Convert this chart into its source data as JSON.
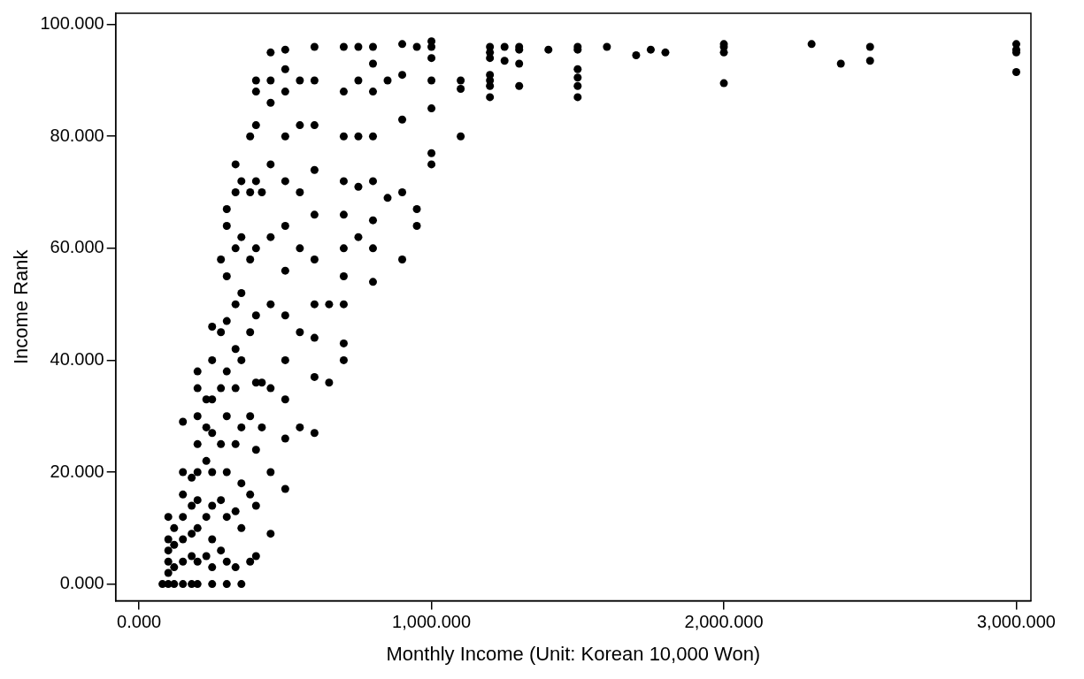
{
  "chart_data": {
    "type": "scatter",
    "xlabel": "Monthly Income (Unit: Korean 10,000 Won)",
    "ylabel": "Income Rank",
    "xlim": [
      -80,
      3050
    ],
    "ylim": [
      -3,
      102
    ],
    "xticks": [
      {
        "value": 0,
        "label": "0.000"
      },
      {
        "value": 1000,
        "label": "1,000.000"
      },
      {
        "value": 2000,
        "label": "2,000.000"
      },
      {
        "value": 3000,
        "label": "3,000.000"
      }
    ],
    "yticks": [
      {
        "value": 0,
        "label": "0.000"
      },
      {
        "value": 20,
        "label": "20.000"
      },
      {
        "value": 40,
        "label": "40.000"
      },
      {
        "value": 60,
        "label": "60.000"
      },
      {
        "value": 80,
        "label": "80.000"
      },
      {
        "value": 100,
        "label": "100.000"
      }
    ],
    "grid": false,
    "legend": false,
    "marker": "circle",
    "series": [
      {
        "color": "#000000",
        "x": [
          80,
          100,
          120,
          150,
          180,
          200,
          250,
          300,
          350,
          100,
          100,
          100,
          100,
          100,
          120,
          120,
          120,
          150,
          150,
          150,
          150,
          150,
          150,
          180,
          180,
          180,
          180,
          200,
          200,
          200,
          200,
          200,
          200,
          200,
          200,
          230,
          230,
          230,
          230,
          230,
          250,
          250,
          250,
          250,
          250,
          250,
          250,
          250,
          280,
          280,
          280,
          280,
          280,
          280,
          300,
          300,
          300,
          300,
          300,
          300,
          300,
          300,
          300,
          330,
          330,
          330,
          330,
          330,
          330,
          330,
          330,
          330,
          350,
          350,
          350,
          350,
          350,
          350,
          350,
          380,
          380,
          380,
          380,
          380,
          380,
          380,
          400,
          400,
          400,
          400,
          400,
          400,
          400,
          400,
          400,
          400,
          420,
          420,
          420,
          450,
          450,
          450,
          450,
          450,
          450,
          450,
          450,
          450,
          500,
          500,
          500,
          500,
          500,
          500,
          500,
          500,
          500,
          500,
          500,
          500,
          550,
          550,
          550,
          550,
          550,
          550,
          600,
          600,
          600,
          600,
          600,
          600,
          600,
          600,
          600,
          600,
          650,
          650,
          700,
          700,
          700,
          700,
          700,
          700,
          700,
          700,
          700,
          700,
          750,
          750,
          750,
          750,
          750,
          800,
          800,
          800,
          800,
          800,
          800,
          800,
          800,
          850,
          850,
          900,
          900,
          900,
          900,
          900,
          950,
          950,
          950,
          1000,
          1000,
          1000,
          1000,
          1000,
          1000,
          1000,
          1100,
          1100,
          1100,
          1200,
          1200,
          1200,
          1200,
          1200,
          1200,
          1200,
          1250,
          1250,
          1300,
          1300,
          1300,
          1300,
          1400,
          1500,
          1500,
          1500,
          1500,
          1500,
          1500,
          1600,
          1700,
          1750,
          1800,
          2000,
          2000,
          2000,
          2000,
          2300,
          2400,
          2500,
          2500,
          3000,
          3000,
          3000,
          3000
        ],
        "values": [
          0,
          0,
          0,
          0,
          0,
          0,
          0,
          0,
          0,
          2,
          4,
          6,
          8,
          12,
          3,
          7,
          10,
          4,
          8,
          12,
          16,
          20,
          29,
          5,
          9,
          14,
          19,
          4,
          10,
          15,
          20,
          25,
          30,
          35,
          38,
          5,
          12,
          22,
          28,
          33,
          3,
          8,
          14,
          20,
          27,
          33,
          40,
          46,
          6,
          15,
          25,
          35,
          45,
          58,
          4,
          12,
          20,
          30,
          38,
          47,
          55,
          64,
          67,
          3,
          13,
          25,
          35,
          42,
          50,
          60,
          70,
          75,
          10,
          18,
          28,
          40,
          52,
          62,
          72,
          4,
          16,
          30,
          45,
          58,
          70,
          80,
          5,
          14,
          24,
          36,
          48,
          60,
          72,
          82,
          88,
          90,
          28,
          36,
          70,
          9,
          20,
          35,
          50,
          62,
          75,
          86,
          90,
          95,
          17,
          26,
          33,
          40,
          48,
          56,
          64,
          72,
          80,
          88,
          92,
          95.5,
          28,
          45,
          60,
          70,
          82,
          90,
          27,
          37,
          44,
          50,
          58,
          66,
          74,
          82,
          90,
          96,
          36,
          50,
          40,
          43,
          50,
          55,
          60,
          66,
          72,
          80,
          88,
          96,
          62,
          71,
          80,
          90,
          96,
          54,
          60,
          65,
          72,
          80,
          88,
          93,
          96,
          69,
          90,
          58,
          70,
          83,
          91,
          96.5,
          64,
          67,
          96,
          75,
          77,
          85,
          90,
          94,
          96,
          97,
          90,
          88.5,
          80,
          96,
          95,
          94,
          91,
          90,
          89,
          87,
          96,
          93.5,
          96,
          95.5,
          93,
          89,
          95.5,
          96,
          95.5,
          92,
          90.5,
          89,
          87,
          96,
          94.5,
          95.5,
          95,
          96.5,
          96,
          95,
          89.5,
          96.5,
          93,
          96,
          93.5,
          96.5,
          95.5,
          95,
          91.5
        ]
      }
    ]
  }
}
